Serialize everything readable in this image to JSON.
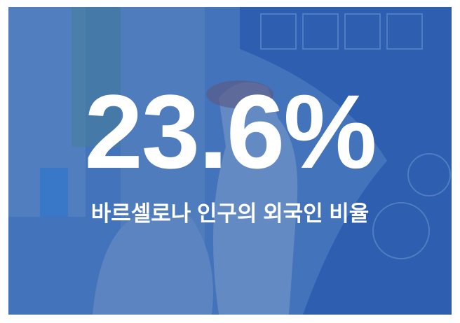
{
  "headline": "23.6%",
  "caption": "바르셀로나 인구의 외국인 비율"
}
